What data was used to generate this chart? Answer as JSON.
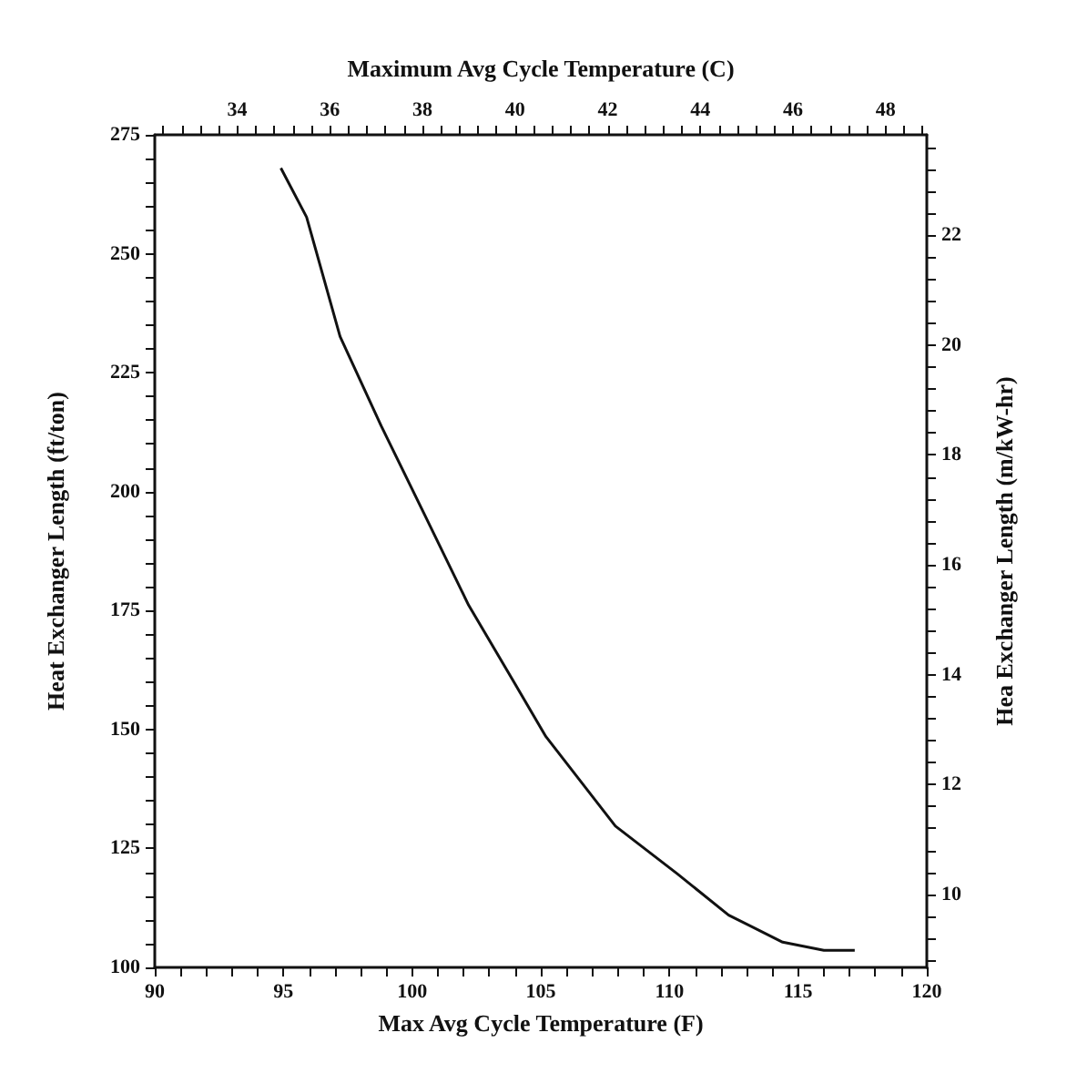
{
  "chart_data": {
    "type": "line",
    "xlabel": "Max Avg Cycle Temperature (F)",
    "ylabel": "Heat Exchanger Length (ft/ton)",
    "y2label": "Hea Exchanger Length (m/kW-hr)",
    "x2label": "Maximum Avg Cycle Temperature (C)",
    "x": [
      94.9,
      95.9,
      97.2,
      98.8,
      100.5,
      102.2,
      103.9,
      105.2,
      107.9,
      110.3,
      112.3,
      114.4,
      116.0,
      117.2
    ],
    "series": [
      {
        "color": "#111111",
        "values": [
          268,
          257.7,
          232.6,
          213.8,
          195,
          176.1,
          160.5,
          148.5,
          129.7,
          119.7,
          111,
          105.3,
          103.6,
          103.6
        ]
      }
    ],
    "xlim": [
      90,
      120
    ],
    "ylim": [
      100,
      275
    ],
    "x2lim": [
      32.22,
      48.89
    ],
    "y2lim": [
      8.67,
      23.83
    ],
    "xticks": [
      90,
      {
        "value": 91,
        "label": null
      },
      {
        "value": 92,
        "label": null
      },
      {
        "value": 93,
        "label": null
      },
      {
        "value": 94,
        "label": null
      },
      95,
      {
        "value": 96,
        "label": null
      },
      {
        "value": 97,
        "label": null
      },
      {
        "value": 98,
        "label": null
      },
      {
        "value": 99,
        "label": null
      },
      100,
      {
        "value": 101,
        "label": null
      },
      {
        "value": 102,
        "label": null
      },
      {
        "value": 103,
        "label": null
      },
      {
        "value": 104,
        "label": null
      },
      105,
      {
        "value": 106,
        "label": null
      },
      {
        "value": 107,
        "label": null
      },
      {
        "value": 108,
        "label": null
      },
      {
        "value": 109,
        "label": null
      },
      110,
      {
        "value": 111,
        "label": null
      },
      {
        "value": 112,
        "label": null
      },
      {
        "value": 113,
        "label": null
      },
      {
        "value": 114,
        "label": null
      },
      115,
      {
        "value": 116,
        "label": null
      },
      {
        "value": 117,
        "label": null
      },
      {
        "value": 118,
        "label": null
      },
      {
        "value": 119,
        "label": null
      },
      120
    ],
    "yticks": [
      100,
      {
        "value": 105,
        "label": null
      },
      {
        "value": 110,
        "label": null
      },
      {
        "value": 115,
        "label": null
      },
      {
        "value": 120,
        "label": null
      },
      125,
      {
        "value": 130,
        "label": null
      },
      {
        "value": 135,
        "label": null
      },
      {
        "value": 140,
        "label": null
      },
      {
        "value": 145,
        "label": null
      },
      150,
      {
        "value": 155,
        "label": null
      },
      {
        "value": 160,
        "label": null
      },
      {
        "value": 165,
        "label": null
      },
      {
        "value": 170,
        "label": null
      },
      175,
      {
        "value": 180,
        "label": null
      },
      {
        "value": 185,
        "label": null
      },
      {
        "value": 190,
        "label": null
      },
      {
        "value": 195,
        "label": null
      },
      200,
      {
        "value": 205,
        "label": null
      },
      {
        "value": 210,
        "label": null
      },
      {
        "value": 215,
        "label": null
      },
      {
        "value": 220,
        "label": null
      },
      225,
      {
        "value": 230,
        "label": null
      },
      {
        "value": 235,
        "label": null
      },
      {
        "value": 240,
        "label": null
      },
      {
        "value": 245,
        "label": null
      },
      250,
      {
        "value": 255,
        "label": null
      },
      {
        "value": 260,
        "label": null
      },
      {
        "value": 265,
        "label": null
      },
      {
        "value": 270,
        "label": null
      },
      275
    ],
    "y2ticks": [
      {
        "value": 8.8,
        "label": null
      },
      {
        "value": 9.2,
        "label": null
      },
      {
        "value": 9.6,
        "label": null
      },
      10,
      {
        "value": 10.4,
        "label": null
      },
      {
        "value": 10.8,
        "label": null
      },
      {
        "value": 11.2,
        "label": null
      },
      {
        "value": 11.6,
        "label": null
      },
      12,
      {
        "value": 12.4,
        "label": null
      },
      {
        "value": 12.8,
        "label": null
      },
      {
        "value": 13.2,
        "label": null
      },
      {
        "value": 13.6,
        "label": null
      },
      14,
      {
        "value": 14.4,
        "label": null
      },
      {
        "value": 14.8,
        "label": null
      },
      {
        "value": 15.2,
        "label": null
      },
      {
        "value": 15.6,
        "label": null
      },
      16,
      {
        "value": 16.4,
        "label": null
      },
      {
        "value": 16.8,
        "label": null
      },
      {
        "value": 17.2,
        "label": null
      },
      {
        "value": 17.6,
        "label": null
      },
      18,
      {
        "value": 18.4,
        "label": null
      },
      {
        "value": 18.8,
        "label": null
      },
      {
        "value": 19.2,
        "label": null
      },
      {
        "value": 19.6,
        "label": null
      },
      20,
      {
        "value": 20.4,
        "label": null
      },
      {
        "value": 20.8,
        "label": null
      },
      {
        "value": 21.2,
        "label": null
      },
      {
        "value": 21.6,
        "label": null
      },
      22,
      {
        "value": 22.4,
        "label": null
      },
      {
        "value": 22.8,
        "label": null
      },
      {
        "value": 23.2,
        "label": null
      },
      {
        "value": 23.6,
        "label": null
      }
    ],
    "x2ticks": [
      {
        "value": 32.4,
        "label": null
      },
      {
        "value": 32.8,
        "label": null
      },
      {
        "value": 33.2,
        "label": null
      },
      {
        "value": 33.6,
        "label": null
      },
      34,
      {
        "value": 34.4,
        "label": null
      },
      {
        "value": 34.8,
        "label": null
      },
      {
        "value": 35.2,
        "label": null
      },
      {
        "value": 35.6,
        "label": null
      },
      36,
      {
        "value": 36.4,
        "label": null
      },
      {
        "value": 36.8,
        "label": null
      },
      {
        "value": 37.2,
        "label": null
      },
      {
        "value": 37.6,
        "label": null
      },
      38,
      {
        "value": 38.4,
        "label": null
      },
      {
        "value": 38.8,
        "label": null
      },
      {
        "value": 39.2,
        "label": null
      },
      {
        "value": 39.6,
        "label": null
      },
      40,
      {
        "value": 40.4,
        "label": null
      },
      {
        "value": 40.8,
        "label": null
      },
      {
        "value": 41.2,
        "label": null
      },
      {
        "value": 41.6,
        "label": null
      },
      42,
      {
        "value": 42.4,
        "label": null
      },
      {
        "value": 42.8,
        "label": null
      },
      {
        "value": 43.2,
        "label": null
      },
      {
        "value": 43.6,
        "label": null
      },
      44,
      {
        "value": 44.4,
        "label": null
      },
      {
        "value": 44.8,
        "label": null
      },
      {
        "value": 45.2,
        "label": null
      },
      {
        "value": 45.6,
        "label": null
      },
      46,
      {
        "value": 46.4,
        "label": null
      },
      {
        "value": 46.8,
        "label": null
      },
      {
        "value": 47.2,
        "label": null
      },
      {
        "value": 47.6,
        "label": null
      },
      48,
      {
        "value": 48.4,
        "label": null
      },
      {
        "value": 48.8,
        "label": null
      }
    ],
    "grid": false,
    "marker": "none",
    "line_style": "solid"
  }
}
